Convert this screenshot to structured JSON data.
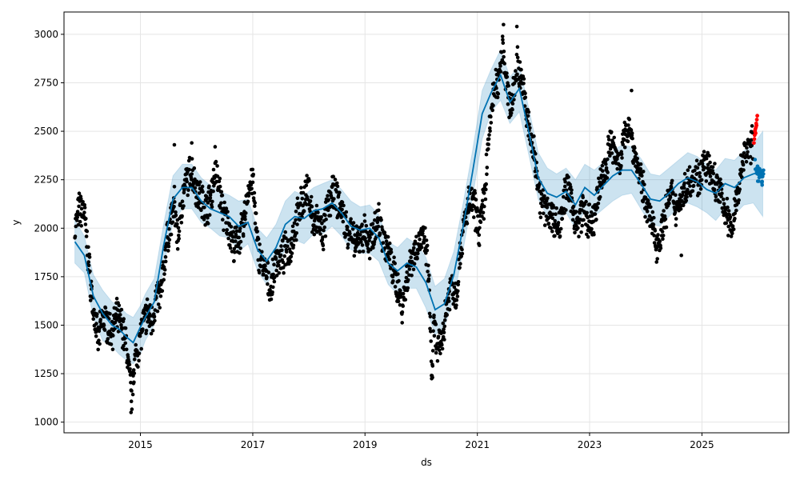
{
  "chart_data": {
    "type": "line",
    "title": "",
    "xlabel": "ds",
    "ylabel": "y",
    "xlim": [
      "2013-08-22",
      "2026-07-20"
    ],
    "ylim": [
      945,
      3115
    ],
    "grid": true,
    "x_ticks": [
      "2015",
      "2017",
      "2019",
      "2021",
      "2023",
      "2025"
    ],
    "y_ticks": [
      1000,
      1250,
      1500,
      1750,
      2000,
      2250,
      2500,
      2750,
      3000
    ],
    "colors": {
      "observed": "#000000",
      "recent_points": "#ff0000",
      "forecast_line": "#0072b2",
      "uncertainty_band": "#0072b2",
      "grid": "#e5e5e5"
    },
    "series": [
      {
        "kind": "forecast",
        "x": [
          "2013-11-01",
          "2014-01-01",
          "2014-03-01",
          "2014-05-01",
          "2014-07-01",
          "2014-08-15",
          "2014-10-01",
          "2014-11-15",
          "2015-01-01",
          "2015-02-01",
          "2015-04-01",
          "2015-06-01",
          "2015-08-01",
          "2015-10-01",
          "2015-12-01",
          "2016-02-01",
          "2016-04-01",
          "2016-06-01",
          "2016-08-01",
          "2016-10-01",
          "2016-12-01",
          "2017-02-01",
          "2017-04-01",
          "2017-06-01",
          "2017-08-01",
          "2017-10-01",
          "2017-12-01",
          "2018-02-01",
          "2018-04-01",
          "2018-06-01",
          "2018-08-01",
          "2018-10-01",
          "2018-12-01",
          "2019-02-01",
          "2019-04-01",
          "2019-06-01",
          "2019-08-01",
          "2019-10-01",
          "2019-12-01",
          "2020-02-01",
          "2020-04-01",
          "2020-06-01",
          "2020-08-01",
          "2020-10-01",
          "2020-12-01",
          "2021-02-01",
          "2021-04-01",
          "2021-06-01",
          "2021-08-01",
          "2021-10-01",
          "2021-12-01",
          "2022-02-01",
          "2022-04-01",
          "2022-06-01",
          "2022-08-01",
          "2022-10-01",
          "2022-12-01",
          "2023-02-01",
          "2023-04-01",
          "2023-06-01",
          "2023-08-01",
          "2023-10-01",
          "2023-12-01",
          "2024-02-01",
          "2024-04-01",
          "2024-06-01",
          "2024-08-01",
          "2024-10-01",
          "2024-12-01",
          "2025-02-01",
          "2025-04-01",
          "2025-06-01",
          "2025-08-01",
          "2025-10-01",
          "2025-12-01",
          "2026-02-01"
        ],
        "yhat": [
          1930,
          1860,
          1650,
          1560,
          1500,
          1480,
          1440,
          1410,
          1490,
          1540,
          1620,
          1910,
          2150,
          2210,
          2210,
          2140,
          2100,
          2080,
          2060,
          2010,
          2030,
          1890,
          1830,
          1900,
          2020,
          2060,
          2050,
          2090,
          2100,
          2130,
          2080,
          2010,
          1990,
          2000,
          1950,
          1820,
          1780,
          1820,
          1800,
          1720,
          1580,
          1610,
          1760,
          2010,
          2290,
          2590,
          2700,
          2790,
          2650,
          2720,
          2500,
          2260,
          2180,
          2160,
          2190,
          2120,
          2210,
          2170,
          2220,
          2270,
          2300,
          2300,
          2230,
          2150,
          2140,
          2180,
          2230,
          2260,
          2240,
          2200,
          2180,
          2230,
          2210,
          2260,
          2280,
          2290
        ],
        "yhat_lower": [
          1820,
          1770,
          1540,
          1420,
          1390,
          1350,
          1320,
          1300,
          1350,
          1420,
          1500,
          1800,
          2030,
          2100,
          2100,
          2030,
          2000,
          1960,
          1950,
          1880,
          1920,
          1780,
          1710,
          1790,
          1890,
          1940,
          1920,
          1970,
          1970,
          2010,
          1960,
          1890,
          1870,
          1870,
          1830,
          1710,
          1660,
          1690,
          1690,
          1590,
          1450,
          1490,
          1640,
          1890,
          2160,
          2460,
          2600,
          2660,
          2540,
          2600,
          2380,
          2150,
          2060,
          2030,
          2080,
          2000,
          2090,
          2060,
          2100,
          2140,
          2170,
          2180,
          2100,
          2020,
          2010,
          2060,
          2110,
          2130,
          2110,
          2080,
          2040,
          2100,
          2070,
          2120,
          2130,
          2060
        ],
        "yhat_upper": [
          2040,
          1960,
          1760,
          1680,
          1620,
          1600,
          1560,
          1540,
          1600,
          1660,
          1740,
          2020,
          2270,
          2330,
          2330,
          2260,
          2220,
          2190,
          2170,
          2140,
          2150,
          2000,
          1950,
          2020,
          2140,
          2190,
          2170,
          2210,
          2230,
          2250,
          2200,
          2140,
          2110,
          2120,
          2070,
          1930,
          1900,
          1950,
          1920,
          1850,
          1700,
          1740,
          1880,
          2130,
          2400,
          2710,
          2820,
          2920,
          2780,
          2840,
          2620,
          2390,
          2310,
          2280,
          2310,
          2250,
          2330,
          2300,
          2340,
          2400,
          2430,
          2420,
          2360,
          2280,
          2270,
          2310,
          2350,
          2390,
          2370,
          2330,
          2300,
          2360,
          2350,
          2400,
          2430,
          2500
        ]
      },
      {
        "kind": "observed",
        "anchors": [
          [
            "2013-11-01",
            2000
          ],
          [
            "2013-12-01",
            2100
          ],
          [
            "2014-01-01",
            2080
          ],
          [
            "2014-02-01",
            1800
          ],
          [
            "2014-03-01",
            1580
          ],
          [
            "2014-04-01",
            1420
          ],
          [
            "2014-05-01",
            1540
          ],
          [
            "2014-06-01",
            1500
          ],
          [
            "2014-07-01",
            1470
          ],
          [
            "2014-08-01",
            1540
          ],
          [
            "2014-09-01",
            1500
          ],
          [
            "2014-10-01",
            1400
          ],
          [
            "2014-10-20",
            1250
          ],
          [
            "2014-11-05",
            1120
          ],
          [
            "2014-11-20",
            1300
          ],
          [
            "2014-12-10",
            1350
          ],
          [
            "2015-01-10",
            1480
          ],
          [
            "2015-02-15",
            1560
          ],
          [
            "2015-03-15",
            1520
          ],
          [
            "2015-04-15",
            1640
          ],
          [
            "2015-05-15",
            1650
          ],
          [
            "2015-06-15",
            1900
          ],
          [
            "2015-07-15",
            2020
          ],
          [
            "2015-08-10",
            2120
          ],
          [
            "2015-09-01",
            1950
          ],
          [
            "2015-10-01",
            2150
          ],
          [
            "2015-11-01",
            2250
          ],
          [
            "2015-12-01",
            2300
          ],
          [
            "2016-01-01",
            2200
          ],
          [
            "2016-02-01",
            2150
          ],
          [
            "2016-03-01",
            2100
          ],
          [
            "2016-04-01",
            2150
          ],
          [
            "2016-05-01",
            2300
          ],
          [
            "2016-06-01",
            2180
          ],
          [
            "2016-07-01",
            2050
          ],
          [
            "2016-08-01",
            2000
          ],
          [
            "2016-09-01",
            1900
          ],
          [
            "2016-10-01",
            1950
          ],
          [
            "2016-11-01",
            2000
          ],
          [
            "2016-12-01",
            2200
          ],
          [
            "2017-01-01",
            2250
          ],
          [
            "2017-02-01",
            1900
          ],
          [
            "2017-03-01",
            1820
          ],
          [
            "2017-04-01",
            1750
          ],
          [
            "2017-05-01",
            1680
          ],
          [
            "2017-06-01",
            1850
          ],
          [
            "2017-07-01",
            1830
          ],
          [
            "2017-08-01",
            1880
          ],
          [
            "2017-09-01",
            1900
          ],
          [
            "2017-10-01",
            2000
          ],
          [
            "2017-11-01",
            2100
          ],
          [
            "2017-12-01",
            2150
          ],
          [
            "2018-01-01",
            2200
          ],
          [
            "2018-02-01",
            2000
          ],
          [
            "2018-03-01",
            2050
          ],
          [
            "2018-04-01",
            1950
          ],
          [
            "2018-05-01",
            2100
          ],
          [
            "2018-06-01",
            2180
          ],
          [
            "2018-07-01",
            2150
          ],
          [
            "2018-08-01",
            2100
          ],
          [
            "2018-09-01",
            2000
          ],
          [
            "2018-10-01",
            1980
          ],
          [
            "2018-11-01",
            1900
          ],
          [
            "2018-12-01",
            1960
          ],
          [
            "2019-01-01",
            1980
          ],
          [
            "2019-02-01",
            1900
          ],
          [
            "2019-03-01",
            2000
          ],
          [
            "2019-04-01",
            2050
          ],
          [
            "2019-05-01",
            1950
          ],
          [
            "2019-06-01",
            1880
          ],
          [
            "2019-07-01",
            1780
          ],
          [
            "2019-08-01",
            1700
          ],
          [
            "2019-09-01",
            1600
          ],
          [
            "2019-10-01",
            1750
          ],
          [
            "2019-11-01",
            1850
          ],
          [
            "2019-12-01",
            1900
          ],
          [
            "2020-01-01",
            1950
          ],
          [
            "2020-02-01",
            1900
          ],
          [
            "2020-02-20",
            1750
          ],
          [
            "2020-03-10",
            1230
          ],
          [
            "2020-03-25",
            1500
          ],
          [
            "2020-04-15",
            1360
          ],
          [
            "2020-05-15",
            1420
          ],
          [
            "2020-06-15",
            1600
          ],
          [
            "2020-07-15",
            1720
          ],
          [
            "2020-08-15",
            1650
          ],
          [
            "2020-09-15",
            1900
          ],
          [
            "2020-10-15",
            2050
          ],
          [
            "2020-11-15",
            2150
          ],
          [
            "2020-12-15",
            2100
          ],
          [
            "2021-01-15",
            2000
          ],
          [
            "2021-02-15",
            2150
          ],
          [
            "2021-03-15",
            2450
          ],
          [
            "2021-04-15",
            2700
          ],
          [
            "2021-05-15",
            2750
          ],
          [
            "2021-06-15",
            2950
          ],
          [
            "2021-07-15",
            2700
          ],
          [
            "2021-08-15",
            2620
          ],
          [
            "2021-09-15",
            2850
          ],
          [
            "2021-10-15",
            2780
          ],
          [
            "2021-11-15",
            2600
          ],
          [
            "2021-12-15",
            2450
          ],
          [
            "2022-01-15",
            2350
          ],
          [
            "2022-02-15",
            2150
          ],
          [
            "2022-03-15",
            2100
          ],
          [
            "2022-04-15",
            2080
          ],
          [
            "2022-05-15",
            2050
          ],
          [
            "2022-06-15",
            2000
          ],
          [
            "2022-07-15",
            2150
          ],
          [
            "2022-08-15",
            2200
          ],
          [
            "2022-09-15",
            2100
          ],
          [
            "2022-10-15",
            2000
          ],
          [
            "2022-11-15",
            2100
          ],
          [
            "2022-12-15",
            2050
          ],
          [
            "2023-01-15",
            2000
          ],
          [
            "2023-02-15",
            2100
          ],
          [
            "2023-03-15",
            2250
          ],
          [
            "2023-04-15",
            2300
          ],
          [
            "2023-05-15",
            2450
          ],
          [
            "2023-06-15",
            2380
          ],
          [
            "2023-07-15",
            2350
          ],
          [
            "2023-08-15",
            2450
          ],
          [
            "2023-09-15",
            2550
          ],
          [
            "2023-10-15",
            2400
          ],
          [
            "2023-11-15",
            2300
          ],
          [
            "2023-12-15",
            2200
          ],
          [
            "2024-01-15",
            2100
          ],
          [
            "2024-02-15",
            2000
          ],
          [
            "2024-03-15",
            1920
          ],
          [
            "2024-04-15",
            1980
          ],
          [
            "2024-05-15",
            2100
          ],
          [
            "2024-06-15",
            2180
          ],
          [
            "2024-07-15",
            2100
          ],
          [
            "2024-08-15",
            2150
          ],
          [
            "2024-09-15",
            2200
          ],
          [
            "2024-10-15",
            2250
          ],
          [
            "2024-11-15",
            2280
          ],
          [
            "2024-12-15",
            2250
          ],
          [
            "2025-01-15",
            2330
          ],
          [
            "2025-02-15",
            2300
          ],
          [
            "2025-03-15",
            2250
          ],
          [
            "2025-04-15",
            2200
          ],
          [
            "2025-05-15",
            2150
          ],
          [
            "2025-06-15",
            2050
          ],
          [
            "2025-07-15",
            2000
          ],
          [
            "2025-08-15",
            2150
          ],
          [
            "2025-09-15",
            2300
          ],
          [
            "2025-10-15",
            2400
          ],
          [
            "2025-11-15",
            2420
          ],
          [
            "2025-12-01",
            2450
          ]
        ],
        "outliers": [
          [
            "2014-11-01",
            1050
          ],
          [
            "2020-03-15",
            1230
          ],
          [
            "2024-08-20",
            1860
          ],
          [
            "2023-10-01",
            2710
          ],
          [
            "2021-06-20",
            3050
          ],
          [
            "2021-09-15",
            3040
          ],
          [
            "2015-08-10",
            2430
          ],
          [
            "2015-12-01",
            2440
          ],
          [
            "2016-05-01",
            2420
          ]
        ]
      },
      {
        "kind": "recent",
        "x": [
          "2025-12-05",
          "2025-12-08",
          "2025-12-10",
          "2025-12-12",
          "2025-12-14",
          "2025-12-16",
          "2025-12-18",
          "2025-12-20",
          "2025-12-22",
          "2025-12-24",
          "2025-12-27"
        ],
        "y": [
          2440,
          2460,
          2480,
          2500,
          2510,
          2490,
          2520,
          2540,
          2530,
          2560,
          2580
        ]
      },
      {
        "kind": "forecast-points",
        "x": [
          "2025-12-20",
          "2026-01-01",
          "2026-01-10",
          "2026-01-20",
          "2026-01-31"
        ],
        "y": [
          2320,
          2280,
          2300,
          2250,
          2260
        ]
      }
    ]
  }
}
